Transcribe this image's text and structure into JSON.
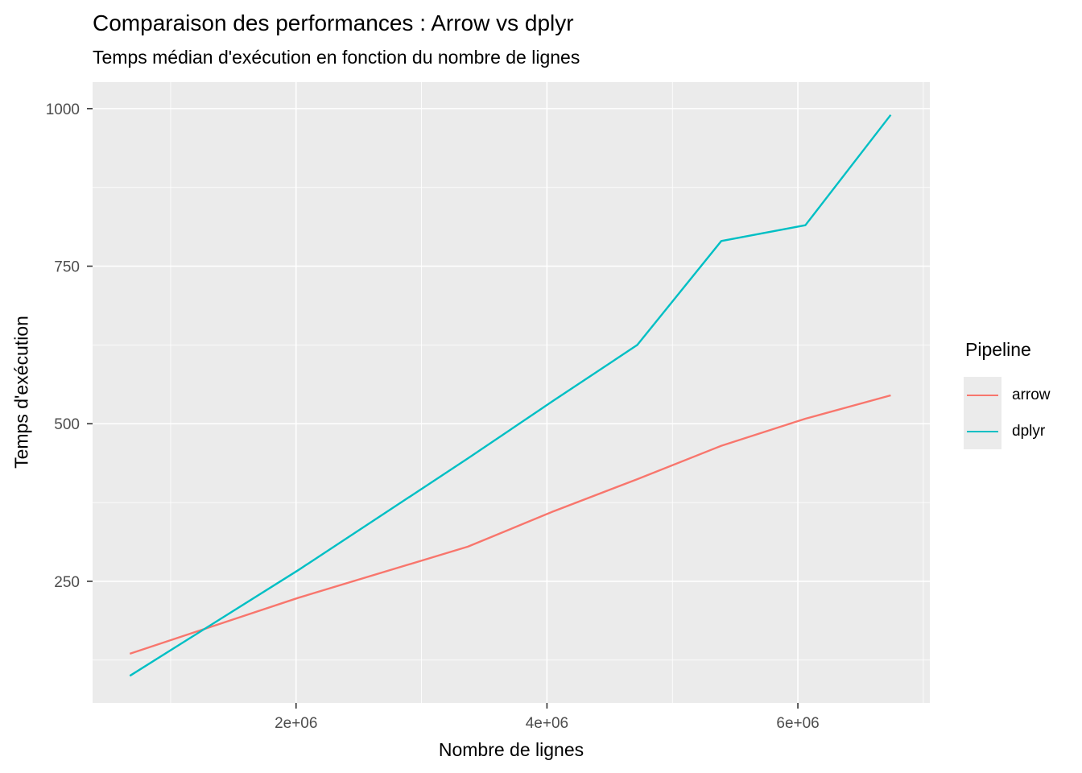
{
  "title": "Comparaison des performances : Arrow vs dplyr",
  "subtitle": "Temps médian d'exécution en fonction du nombre de lignes",
  "x_axis": {
    "title": "Nombre de lignes",
    "ticks": [
      {
        "label": "2e+06",
        "value": 2000000
      },
      {
        "label": "4e+06",
        "value": 4000000
      },
      {
        "label": "6e+06",
        "value": 6000000
      }
    ],
    "minor": [
      1000000,
      3000000,
      5000000,
      7000000
    ]
  },
  "y_axis": {
    "title": "Temps d'exécution",
    "ticks": [
      {
        "label": "250",
        "value": 250
      },
      {
        "label": "500",
        "value": 500
      },
      {
        "label": "750",
        "value": 750
      },
      {
        "label": "1000",
        "value": 1000
      }
    ],
    "minor": [
      125,
      375,
      625,
      875
    ]
  },
  "legend": {
    "title": "Pipeline",
    "items": [
      {
        "label": "arrow",
        "color": "#F8766D"
      },
      {
        "label": "dplyr",
        "color": "#00BFC4"
      }
    ]
  },
  "colors": {
    "background": "#FFFFFF",
    "panel": "#EBEBEB",
    "grid": "#FFFFFF",
    "tick_mark": "#333333",
    "tick_label": "#4D4D4D",
    "text": "#000000"
  },
  "chart_data": {
    "type": "line",
    "title": "Comparaison des performances : Arrow vs dplyr",
    "subtitle": "Temps médian d'exécution en fonction du nombre de lignes",
    "xlabel": "Nombre de lignes",
    "ylabel": "Temps d'exécution",
    "x_domain": [
      378000,
      7052000
    ],
    "y_domain": [
      57,
      1042
    ],
    "x_ticks": [
      2000000,
      4000000,
      6000000
    ],
    "y_ticks": [
      250,
      500,
      750,
      1000
    ],
    "grid": true,
    "legend_title": "Pipeline",
    "legend_position": "right",
    "series": [
      {
        "name": "arrow",
        "color": "#F8766D",
        "points": [
          [
            675000,
            135
          ],
          [
            2020000,
            224
          ],
          [
            3370000,
            305
          ],
          [
            4040000,
            360
          ],
          [
            4720000,
            412
          ],
          [
            5390000,
            465
          ],
          [
            6060000,
            508
          ],
          [
            6740000,
            545
          ]
        ]
      },
      {
        "name": "dplyr",
        "color": "#00BFC4",
        "points": [
          [
            675000,
            100
          ],
          [
            2020000,
            268
          ],
          [
            3370000,
            445
          ],
          [
            4040000,
            535
          ],
          [
            4720000,
            625
          ],
          [
            5390000,
            790
          ],
          [
            6060000,
            815
          ],
          [
            6740000,
            990
          ]
        ]
      }
    ]
  }
}
